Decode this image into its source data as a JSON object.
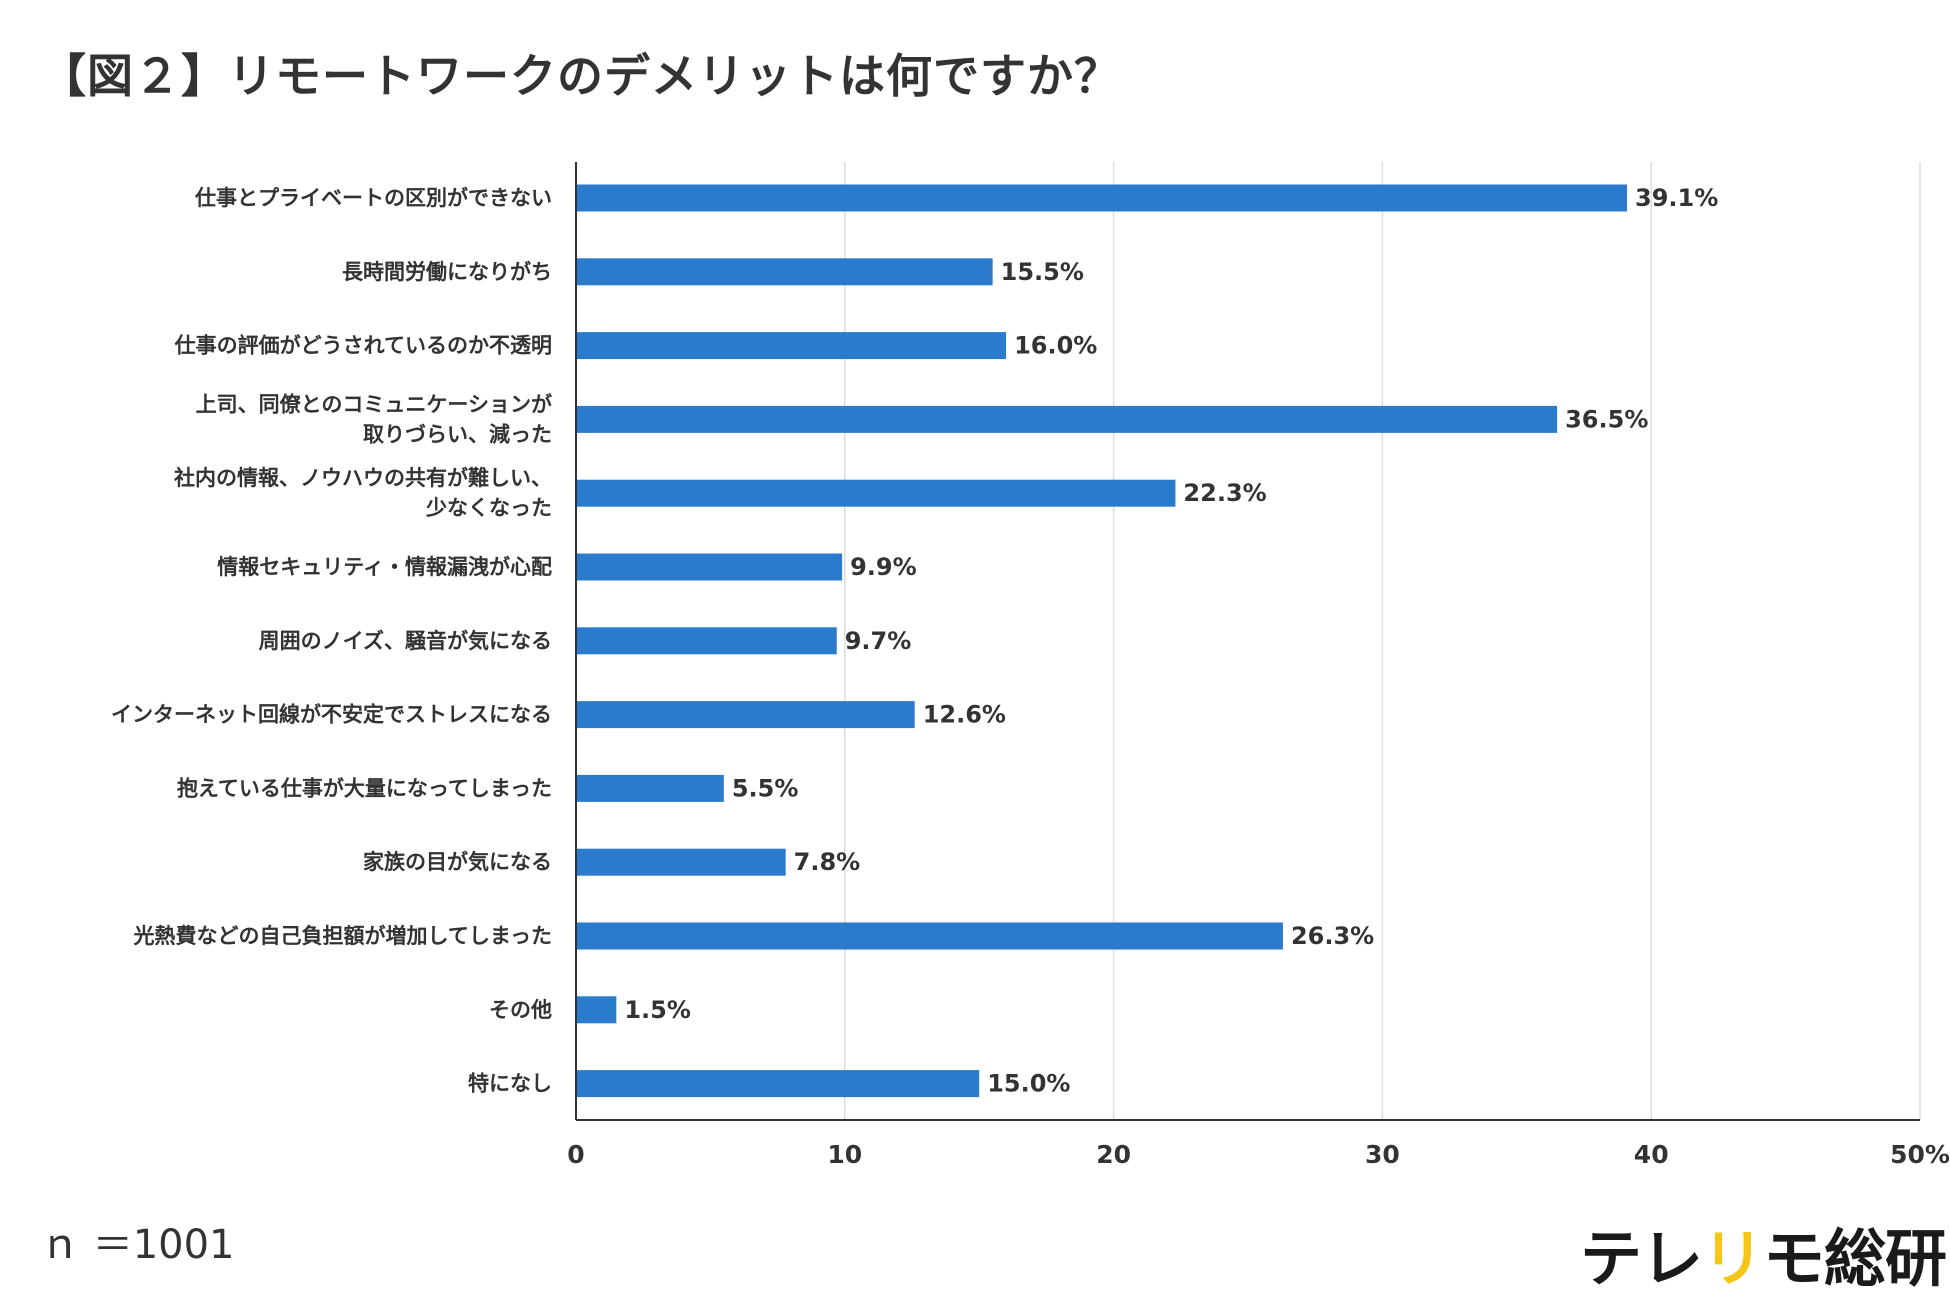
{
  "title": "【図２】リモートワークのデメリットは何ですか？",
  "note": "ｎ ＝1001",
  "brand": {
    "part1": "テレ",
    "part2": "リ",
    "part3": "モ",
    "part4": "総研",
    "color_dark": "#1a1a1a",
    "color_accent": "#f5c518"
  },
  "colors": {
    "bar": "#2b7bcd",
    "grid": "#dddddd",
    "axis": "#333333"
  },
  "chart_data": {
    "type": "bar",
    "orientation": "horizontal",
    "categories": [
      [
        "仕事とプライベートの区別ができない"
      ],
      [
        "長時間労働になりがち"
      ],
      [
        "仕事の評価がどうされているのか不透明"
      ],
      [
        "上司、同僚とのコミュニケーションが",
        "取りづらい、減った"
      ],
      [
        "社内の情報、ノウハウの共有が難しい、",
        "少なくなった"
      ],
      [
        "情報セキュリティ・情報漏洩が心配"
      ],
      [
        "周囲のノイズ、騒音が気になる"
      ],
      [
        "インターネット回線が不安定でストレスになる"
      ],
      [
        "抱えている仕事が大量になってしまった"
      ],
      [
        "家族の目が気になる"
      ],
      [
        "光熱費などの自己負担額が増加してしまった"
      ],
      [
        "その他"
      ],
      [
        "特になし"
      ]
    ],
    "values": [
      39.1,
      15.5,
      16.0,
      36.5,
      22.3,
      9.9,
      9.7,
      12.6,
      5.5,
      7.8,
      26.3,
      1.5,
      15.0
    ],
    "value_labels": [
      "39.1%",
      "15.5%",
      "16.0%",
      "36.5%",
      "22.3%",
      "9.9%",
      "9.7%",
      "12.6%",
      "5.5%",
      "7.8%",
      "26.3%",
      "1.5%",
      "15.0%"
    ],
    "xlim": [
      0,
      50
    ],
    "ticks": [
      0,
      10,
      20,
      30,
      40,
      50
    ],
    "tick_labels": [
      "0",
      "10",
      "20",
      "30",
      "40",
      "50%"
    ],
    "grid": true
  }
}
